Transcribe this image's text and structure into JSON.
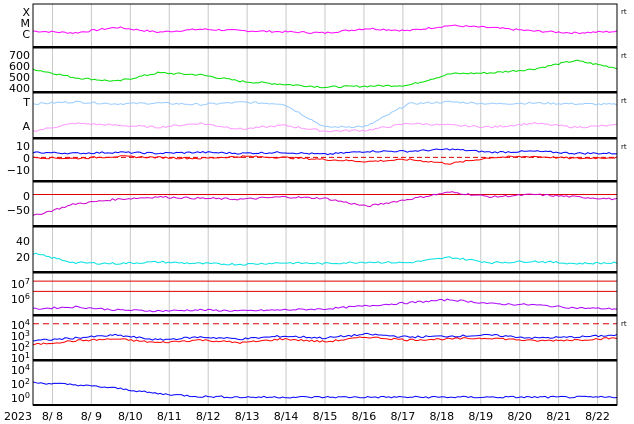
{
  "chart_data": {
    "type": "line",
    "title": "",
    "x_start_label": "2023",
    "x_ticks": [
      "8/ 8",
      "8/ 9",
      "8/10",
      "8/11",
      "8/12",
      "8/13",
      "8/14",
      "8/15",
      "8/16",
      "8/17",
      "8/18",
      "8/19",
      "8/20",
      "8/21",
      "8/22"
    ],
    "panels": [
      {
        "id": "xray",
        "left_labels": [
          "X",
          "M",
          "C"
        ],
        "right_label": "rt",
        "series": [
          {
            "color": "#ff00ff",
            "values": [
              0.35,
              0.3,
              0.45,
              0.32,
              0.4,
              0.36,
              0.33,
              0.3,
              0.42,
              0.36,
              0.5,
              0.44,
              0.35,
              0.3,
              0.34
            ]
          }
        ]
      },
      {
        "id": "solar-wind-speed",
        "y_ticks": [
          "700",
          "600",
          "500",
          "400"
        ],
        "ylim": [
          350,
          750
        ],
        "right_label": "rt",
        "series": [
          {
            "color": "#00e000",
            "values": [
              560,
              470,
              430,
              520,
              500,
              430,
              400,
              370,
              380,
              390,
              510,
              520,
              560,
              650,
              570
            ]
          }
        ]
      },
      {
        "id": "imf-sector",
        "left_labels": [
          "T",
          "A"
        ],
        "right_label": "rt",
        "series": [
          {
            "name": "",
            "color": "#99ccff",
            "values": [
              0.8,
              0.85,
              0.8,
              0.82,
              0.78,
              0.84,
              0.8,
              0.2,
              0.22,
              0.8,
              0.85,
              0.8,
              0.82,
              0.8,
              0.78
            ]
          },
          {
            "name": "",
            "color": "#ff99ff",
            "values": [
              0.1,
              0.3,
              0.25,
              0.2,
              0.3,
              0.15,
              0.25,
              0.1,
              0.12,
              0.3,
              0.25,
              0.2,
              0.3,
              0.2,
              0.25
            ]
          }
        ]
      },
      {
        "id": "imf-components",
        "y_ticks": [
          "10",
          "0",
          "−10"
        ],
        "ylim": [
          -20,
          15
        ],
        "right_label": "rt",
        "series": [
          {
            "color": "#0000ff",
            "values": [
              5,
              4,
              5,
              4,
              5,
              4,
              5,
              3,
              6,
              6,
              8,
              5,
              6,
              4,
              4
            ]
          },
          {
            "color": "#ff0000",
            "values": [
              0,
              -1,
              1,
              0,
              -1,
              1,
              0,
              -2,
              -4,
              -2,
              -6,
              0,
              1,
              -1,
              0
            ]
          }
        ]
      },
      {
        "id": "dst",
        "y_ticks": [
          "0",
          "−50"
        ],
        "ylim": [
          -60,
          20
        ],
        "right_label": "",
        "series": [
          {
            "color": "#cc00cc",
            "values": [
              -45,
              -20,
              -10,
              -5,
              -8,
              -10,
              -5,
              -8,
              -25,
              -10,
              5,
              -5,
              0,
              -5,
              -10
            ]
          }
        ]
      },
      {
        "id": "kp-like",
        "y_ticks": [
          "40",
          "20"
        ],
        "ylim": [
          0,
          50
        ],
        "right_label": "",
        "series": [
          {
            "color": "#00e0e0",
            "values": [
              20,
              8,
              7,
              9,
              7,
              6,
              8,
              7,
              9,
              8,
              15,
              8,
              10,
              7,
              8
            ]
          }
        ]
      },
      {
        "id": "proton-flux",
        "y_ticks": [
          "10^7",
          "10^6"
        ],
        "ylim": [
          4,
          7.5
        ],
        "right_label": "",
        "threshold_lines": [
          7,
          6
        ],
        "series": [
          {
            "color": "#aa00ff",
            "values": [
              4.3,
              4.5,
              4.2,
              4.1,
              4.2,
              4.1,
              4.2,
              4.3,
              4.6,
              4.9,
              5.2,
              4.8,
              4.7,
              4.4,
              4.3
            ]
          }
        ]
      },
      {
        "id": "electron-flux",
        "y_ticks": [
          "10^4",
          "10^3",
          "10^2",
          "10^1"
        ],
        "ylim": [
          0.5,
          4.5
        ],
        "right_label": "rt",
        "threshold_lines": [
          4
        ],
        "series": [
          {
            "color": "#0000ff",
            "values": [
              2.2,
              2.5,
              2.8,
              2.3,
              2.6,
              2.4,
              2.7,
              2.5,
              2.9,
              2.6,
              2.7,
              2.8,
              2.5,
              2.6,
              2.8
            ]
          },
          {
            "color": "#ff0000",
            "values": [
              1.8,
              2.2,
              2.4,
              2.0,
              2.3,
              2.0,
              2.4,
              2.1,
              2.6,
              2.3,
              2.4,
              2.5,
              2.2,
              2.3,
              2.5
            ]
          }
        ]
      },
      {
        "id": "neutron",
        "y_ticks": [
          "10^4",
          "10^2",
          "10^0"
        ],
        "ylim": [
          -1,
          4.5
        ],
        "right_label": "",
        "series": [
          {
            "color": "#0000ff",
            "values": [
              1.8,
              1.5,
              1.0,
              0.2,
              -0.2,
              -0.3,
              -0.3,
              -0.3,
              -0.3,
              -0.3,
              -0.3,
              -0.3,
              -0.3,
              -0.3,
              -0.3
            ]
          }
        ]
      }
    ]
  }
}
